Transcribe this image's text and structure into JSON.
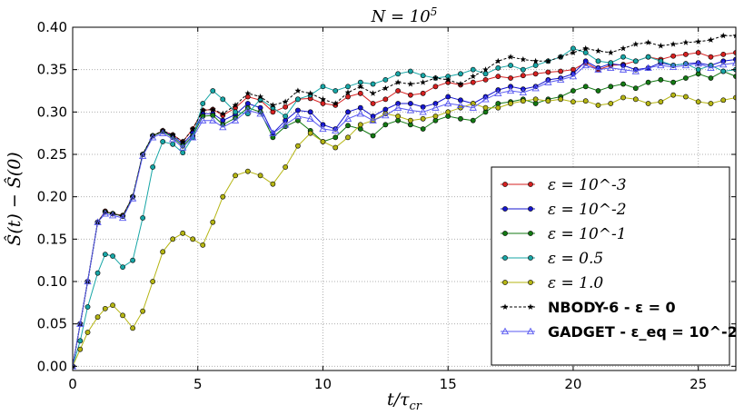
{
  "chart_data": {
    "type": "line",
    "title": "N = 10^5",
    "xlabel": "t/τ_cr",
    "ylabel": "Ŝ(t) − Ŝ(0)",
    "xlim": [
      0,
      26.5
    ],
    "ylim": [
      -0.005,
      0.4
    ],
    "xticks": [
      0,
      5,
      10,
      15,
      20,
      25
    ],
    "xtick_labels": [
      "0",
      "5",
      "10",
      "15",
      "20",
      "25"
    ],
    "yticks": [
      0.0,
      0.05,
      0.1,
      0.15,
      0.2,
      0.25,
      0.3,
      0.35,
      0.4
    ],
    "ytick_labels": [
      "0.00",
      "0.05",
      "0.10",
      "0.15",
      "0.20",
      "0.25",
      "0.30",
      "0.35",
      "0.40"
    ],
    "grid": true,
    "legend_position": "lower-right",
    "series": [
      {
        "name": "ε = 10^-3",
        "color": "#d62020",
        "marker": "circle",
        "x": [
          0,
          0.3,
          0.6,
          1,
          1.3,
          1.6,
          2,
          2.4,
          2.8,
          3.2,
          3.6,
          4,
          4.4,
          4.8,
          5.2,
          5.6,
          6,
          6.5,
          7,
          7.5,
          8,
          8.5,
          9,
          9.5,
          10,
          10.5,
          11,
          11.5,
          12,
          12.5,
          13,
          13.5,
          14,
          14.5,
          15,
          15.5,
          16,
          16.5,
          17,
          17.5,
          18,
          18.5,
          19,
          19.5,
          20,
          20.5,
          21,
          21.5,
          22,
          22.5,
          23,
          23.5,
          24,
          24.5,
          25,
          25.5,
          26,
          26.5
        ],
        "values": [
          0,
          0.05,
          0.1,
          0.17,
          0.183,
          0.18,
          0.178,
          0.2,
          0.25,
          0.272,
          0.278,
          0.273,
          0.265,
          0.28,
          0.302,
          0.303,
          0.296,
          0.305,
          0.318,
          0.314,
          0.3,
          0.306,
          0.315,
          0.316,
          0.31,
          0.308,
          0.318,
          0.322,
          0.31,
          0.315,
          0.325,
          0.32,
          0.322,
          0.33,
          0.335,
          0.332,
          0.335,
          0.338,
          0.342,
          0.34,
          0.343,
          0.345,
          0.347,
          0.348,
          0.35,
          0.358,
          0.35,
          0.355,
          0.356,
          0.36,
          0.365,
          0.362,
          0.366,
          0.368,
          0.37,
          0.365,
          0.368,
          0.37
        ]
      },
      {
        "name": "ε = 10^-2",
        "color": "#1515d0",
        "marker": "circle",
        "x": [
          0,
          0.3,
          0.6,
          1,
          1.3,
          1.6,
          2,
          2.4,
          2.8,
          3.2,
          3.6,
          4,
          4.4,
          4.8,
          5.2,
          5.6,
          6,
          6.5,
          7,
          7.5,
          8,
          8.5,
          9,
          9.5,
          10,
          10.5,
          11,
          11.5,
          12,
          12.5,
          13,
          13.5,
          14,
          14.5,
          15,
          15.5,
          16,
          16.5,
          17,
          17.5,
          18,
          18.5,
          19,
          19.5,
          20,
          20.5,
          21,
          21.5,
          22,
          22.5,
          23,
          23.5,
          24,
          24.5,
          25,
          25.5,
          26,
          26.5
        ],
        "values": [
          0,
          0.05,
          0.1,
          0.17,
          0.182,
          0.18,
          0.177,
          0.2,
          0.25,
          0.272,
          0.277,
          0.272,
          0.262,
          0.275,
          0.298,
          0.298,
          0.29,
          0.297,
          0.31,
          0.305,
          0.275,
          0.29,
          0.302,
          0.3,
          0.285,
          0.28,
          0.3,
          0.305,
          0.295,
          0.303,
          0.31,
          0.31,
          0.306,
          0.31,
          0.318,
          0.314,
          0.31,
          0.318,
          0.326,
          0.33,
          0.327,
          0.33,
          0.338,
          0.34,
          0.345,
          0.36,
          0.352,
          0.357,
          0.355,
          0.35,
          0.352,
          0.358,
          0.355,
          0.357,
          0.358,
          0.355,
          0.36,
          0.362
        ]
      },
      {
        "name": "ε = 10^-1",
        "color": "#137a13",
        "marker": "circle",
        "x": [
          0,
          0.3,
          0.6,
          1,
          1.3,
          1.6,
          2,
          2.4,
          2.8,
          3.2,
          3.6,
          4,
          4.4,
          4.8,
          5.2,
          5.6,
          6,
          6.5,
          7,
          7.5,
          8,
          8.5,
          9,
          9.5,
          10,
          10.5,
          11,
          11.5,
          12,
          12.5,
          13,
          13.5,
          14,
          14.5,
          15,
          15.5,
          16,
          16.5,
          17,
          17.5,
          18,
          18.5,
          19,
          19.5,
          20,
          20.5,
          21,
          21.5,
          22,
          22.5,
          23,
          23.5,
          24,
          24.5,
          25,
          25.5,
          26,
          26.5
        ],
        "values": [
          0,
          0.05,
          0.1,
          0.17,
          0.182,
          0.18,
          0.177,
          0.2,
          0.25,
          0.272,
          0.277,
          0.27,
          0.26,
          0.272,
          0.295,
          0.296,
          0.285,
          0.293,
          0.305,
          0.3,
          0.27,
          0.283,
          0.29,
          0.278,
          0.265,
          0.27,
          0.284,
          0.28,
          0.272,
          0.285,
          0.29,
          0.285,
          0.28,
          0.29,
          0.295,
          0.292,
          0.29,
          0.3,
          0.31,
          0.312,
          0.315,
          0.31,
          0.315,
          0.318,
          0.325,
          0.33,
          0.325,
          0.33,
          0.333,
          0.328,
          0.335,
          0.338,
          0.335,
          0.34,
          0.345,
          0.34,
          0.348,
          0.342
        ]
      },
      {
        "name": "ε = 0.5",
        "color": "#17a6a6",
        "marker": "circle",
        "x": [
          0,
          0.3,
          0.6,
          1,
          1.3,
          1.6,
          2,
          2.4,
          2.8,
          3.2,
          3.6,
          4,
          4.4,
          4.8,
          5.2,
          5.6,
          6,
          6.5,
          7,
          7.5,
          8,
          8.5,
          9,
          9.5,
          10,
          10.5,
          11,
          11.5,
          12,
          12.5,
          13,
          13.5,
          14,
          14.5,
          15,
          15.5,
          16,
          16.5,
          17,
          17.5,
          18,
          18.5,
          19,
          19.5,
          20,
          20.5,
          21,
          21.5,
          22,
          22.5,
          23,
          23.5,
          24,
          24.5,
          25,
          25.5,
          26,
          26.5
        ],
        "values": [
          0,
          0.03,
          0.07,
          0.11,
          0.132,
          0.13,
          0.117,
          0.125,
          0.175,
          0.235,
          0.265,
          0.262,
          0.252,
          0.27,
          0.31,
          0.325,
          0.315,
          0.3,
          0.298,
          0.315,
          0.305,
          0.295,
          0.315,
          0.32,
          0.33,
          0.325,
          0.33,
          0.335,
          0.333,
          0.338,
          0.345,
          0.348,
          0.343,
          0.34,
          0.342,
          0.345,
          0.35,
          0.345,
          0.352,
          0.355,
          0.35,
          0.355,
          0.36,
          0.365,
          0.375,
          0.37,
          0.36,
          0.358,
          0.365,
          0.36,
          0.365,
          0.36,
          0.355,
          0.357,
          0.35,
          0.355,
          0.348,
          0.35
        ]
      },
      {
        "name": "ε = 1.0",
        "color": "#b5b513",
        "marker": "circle",
        "x": [
          0,
          0.3,
          0.6,
          1,
          1.3,
          1.6,
          2,
          2.4,
          2.8,
          3.2,
          3.6,
          4,
          4.4,
          4.8,
          5.2,
          5.6,
          6,
          6.5,
          7,
          7.5,
          8,
          8.5,
          9,
          9.5,
          10,
          10.5,
          11,
          11.5,
          12,
          12.5,
          13,
          13.5,
          14,
          14.5,
          15,
          15.5,
          16,
          16.5,
          17,
          17.5,
          18,
          18.5,
          19,
          19.5,
          20,
          20.5,
          21,
          21.5,
          22,
          22.5,
          23,
          23.5,
          24,
          24.5,
          25,
          25.5,
          26,
          26.5
        ],
        "values": [
          0,
          0.02,
          0.04,
          0.058,
          0.068,
          0.072,
          0.06,
          0.045,
          0.065,
          0.1,
          0.135,
          0.15,
          0.157,
          0.15,
          0.143,
          0.17,
          0.2,
          0.225,
          0.23,
          0.225,
          0.215,
          0.235,
          0.26,
          0.275,
          0.265,
          0.258,
          0.27,
          0.285,
          0.29,
          0.298,
          0.295,
          0.29,
          0.292,
          0.295,
          0.3,
          0.305,
          0.31,
          0.305,
          0.305,
          0.31,
          0.313,
          0.315,
          0.313,
          0.315,
          0.312,
          0.313,
          0.308,
          0.31,
          0.317,
          0.315,
          0.31,
          0.312,
          0.32,
          0.318,
          0.312,
          0.31,
          0.314,
          0.317
        ]
      },
      {
        "name": "NBODY-6 - ε = 0",
        "color": "#000000",
        "marker": "star",
        "dashed": true,
        "x": [
          0,
          0.3,
          0.6,
          1,
          1.3,
          1.6,
          2,
          2.4,
          2.8,
          3.2,
          3.6,
          4,
          4.4,
          4.8,
          5.2,
          5.6,
          6,
          6.5,
          7,
          7.5,
          8,
          8.5,
          9,
          9.5,
          10,
          10.5,
          11,
          11.5,
          12,
          12.5,
          13,
          13.5,
          14,
          14.5,
          15,
          15.5,
          16,
          16.5,
          17,
          17.5,
          18,
          18.5,
          19,
          19.5,
          20,
          20.5,
          21,
          21.5,
          22,
          22.5,
          23,
          23.5,
          24,
          24.5,
          25,
          25.5,
          26,
          26.5
        ],
        "values": [
          0,
          0.05,
          0.1,
          0.17,
          0.182,
          0.18,
          0.177,
          0.2,
          0.25,
          0.272,
          0.278,
          0.273,
          0.265,
          0.28,
          0.302,
          0.303,
          0.298,
          0.308,
          0.322,
          0.318,
          0.308,
          0.312,
          0.325,
          0.322,
          0.315,
          0.31,
          0.323,
          0.33,
          0.322,
          0.328,
          0.335,
          0.333,
          0.335,
          0.34,
          0.338,
          0.333,
          0.342,
          0.35,
          0.36,
          0.365,
          0.362,
          0.36,
          0.36,
          0.365,
          0.37,
          0.375,
          0.372,
          0.37,
          0.375,
          0.38,
          0.382,
          0.378,
          0.38,
          0.382,
          0.383,
          0.385,
          0.39,
          0.39
        ]
      },
      {
        "name": "GADGET - ε_eq = 10^-2",
        "color": "#5a5af0",
        "marker": "triangle",
        "x": [
          0,
          0.3,
          0.6,
          1,
          1.3,
          1.6,
          2,
          2.4,
          2.8,
          3.2,
          3.6,
          4,
          4.4,
          4.8,
          5.2,
          5.6,
          6,
          6.5,
          7,
          7.5,
          8,
          8.5,
          9,
          9.5,
          10,
          10.5,
          11,
          11.5,
          12,
          12.5,
          13,
          13.5,
          14,
          14.5,
          15,
          15.5,
          16,
          16.5,
          17,
          17.5,
          18,
          18.5,
          19,
          19.5,
          20,
          20.5,
          21,
          21.5,
          22,
          22.5,
          23,
          23.5,
          24,
          24.5,
          25,
          25.5,
          26,
          26.5
        ],
        "values": [
          0,
          0.05,
          0.1,
          0.17,
          0.18,
          0.178,
          0.175,
          0.198,
          0.248,
          0.27,
          0.275,
          0.268,
          0.258,
          0.27,
          0.29,
          0.29,
          0.282,
          0.29,
          0.302,
          0.298,
          0.275,
          0.285,
          0.295,
          0.292,
          0.28,
          0.278,
          0.292,
          0.298,
          0.29,
          0.296,
          0.305,
          0.302,
          0.3,
          0.305,
          0.31,
          0.308,
          0.305,
          0.315,
          0.322,
          0.325,
          0.323,
          0.328,
          0.335,
          0.338,
          0.342,
          0.355,
          0.35,
          0.352,
          0.35,
          0.348,
          0.352,
          0.355,
          0.353,
          0.355,
          0.357,
          0.352,
          0.356,
          0.358
        ]
      }
    ]
  }
}
